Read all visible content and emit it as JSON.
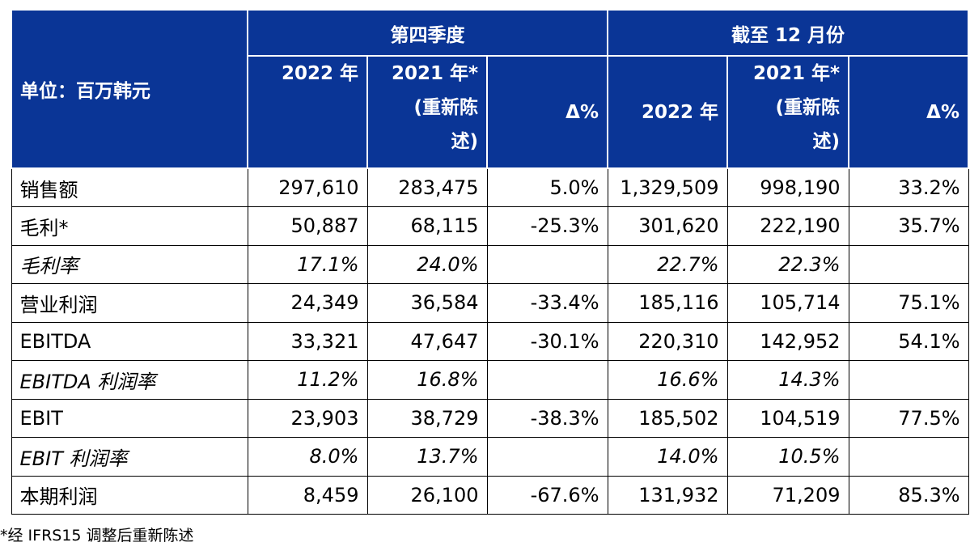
{
  "header": {
    "unit_label": "单位：百万韩元",
    "groups": [
      "第四季度",
      "截至 12 月份"
    ],
    "columns": [
      {
        "line1": "2022 年",
        "line2": "",
        "line3": ""
      },
      {
        "line1": "2021 年*",
        "line2": "(重新陈",
        "line3": "述)"
      },
      {
        "line1": "",
        "line2": "Δ%",
        "line3": ""
      },
      {
        "line1": "",
        "line2": "2022 年",
        "line3": ""
      },
      {
        "line1": "2021 年*",
        "line2": "(重新陈",
        "line3": "述)"
      },
      {
        "line1": "",
        "line2": "Δ%",
        "line3": ""
      }
    ]
  },
  "rows": [
    {
      "label": "销售额",
      "italic": false,
      "values": [
        "297,610",
        "283,475",
        "5.0%",
        "1,329,509",
        "998,190",
        "33.2%"
      ]
    },
    {
      "label": "毛利*",
      "italic": false,
      "values": [
        "50,887",
        "68,115",
        "-25.3%",
        "301,620",
        "222,190",
        "35.7%"
      ]
    },
    {
      "label": "毛利率",
      "italic": true,
      "values": [
        "17.1%",
        "24.0%",
        "",
        "22.7%",
        "22.3%",
        ""
      ]
    },
    {
      "label": "营业利润",
      "italic": false,
      "values": [
        "24,349",
        "36,584",
        "-33.4%",
        "185,116",
        "105,714",
        "75.1%"
      ]
    },
    {
      "label": "EBITDA",
      "italic": false,
      "values": [
        "33,321",
        "47,647",
        "-30.1%",
        "220,310",
        "142,952",
        "54.1%"
      ]
    },
    {
      "label": "EBITDA 利润率",
      "italic": true,
      "values": [
        "11.2%",
        "16.8%",
        "",
        "16.6%",
        "14.3%",
        ""
      ]
    },
    {
      "label": "EBIT",
      "italic": false,
      "values": [
        "23,903",
        "38,729",
        "-38.3%",
        "185,502",
        "104,519",
        "77.5%"
      ]
    },
    {
      "label": "EBIT 利润率",
      "italic": true,
      "values": [
        "8.0%",
        "13.7%",
        "",
        "14.0%",
        "10.5%",
        ""
      ]
    },
    {
      "label": "本期利润",
      "italic": false,
      "values": [
        "8,459",
        "26,100",
        "-67.6%",
        "131,932",
        "71,209",
        "85.3%"
      ]
    }
  ],
  "footnote": "*经 IFRS15 调整后重新陈述",
  "colors": {
    "header_background": "#0a3596",
    "header_text": "#ffffff",
    "grid": "#000000"
  }
}
